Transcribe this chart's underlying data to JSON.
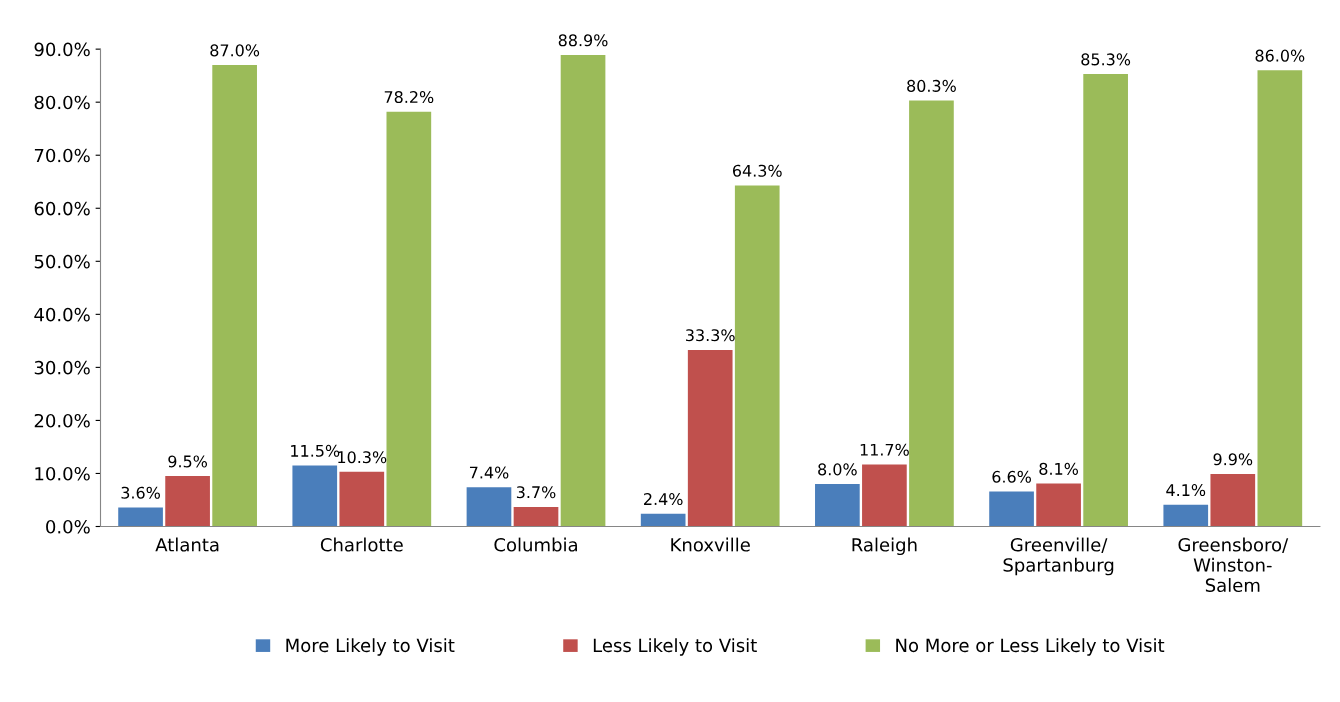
{
  "chart_data": {
    "type": "bar",
    "categories": [
      "Atlanta",
      "Charlotte",
      "Columbia",
      "Knoxville",
      "Raleigh",
      "Greenville/\nSpartanburg",
      "Greensboro/\nWinston-\nSalem"
    ],
    "series": [
      {
        "name": "More Likely to Visit",
        "color": "#4a7ebb",
        "values": [
          3.6,
          11.5,
          7.4,
          2.4,
          8.0,
          6.6,
          4.1
        ],
        "value_labels": [
          "3.6%",
          "11.5%",
          "7.4%",
          "2.4%",
          "8.0%",
          "6.6%",
          "4.1%"
        ]
      },
      {
        "name": "Less Likely to Visit",
        "color": "#c0504d",
        "values": [
          9.5,
          10.3,
          3.7,
          33.3,
          11.7,
          8.1,
          9.9
        ],
        "value_labels": [
          "9.5%",
          "10.3%",
          "3.7%",
          "33.3%",
          "11.7%",
          "8.1%",
          "9.9%"
        ]
      },
      {
        "name": "No More or Less Likely to Visit",
        "color": "#9bbb59",
        "values": [
          87.0,
          78.2,
          88.9,
          64.3,
          80.3,
          85.3,
          86.0
        ],
        "value_labels": [
          "87.0%",
          "78.2%",
          "88.9%",
          "64.3%",
          "80.3%",
          "85.3%",
          "86.0%"
        ]
      }
    ],
    "ylim": [
      0,
      90
    ],
    "yticks": [
      {
        "value": 0,
        "label": "0.0%"
      },
      {
        "value": 10,
        "label": "10.0%"
      },
      {
        "value": 20,
        "label": "20.0%"
      },
      {
        "value": 30,
        "label": "30.0%"
      },
      {
        "value": 40,
        "label": "40.0%"
      },
      {
        "value": 50,
        "label": "50.0%"
      },
      {
        "value": 60,
        "label": "60.0%"
      },
      {
        "value": 70,
        "label": "70.0%"
      },
      {
        "value": 80,
        "label": "80.0%"
      },
      {
        "value": 90,
        "label": "90.0%"
      }
    ],
    "grid": false,
    "legend": "bottom"
  }
}
